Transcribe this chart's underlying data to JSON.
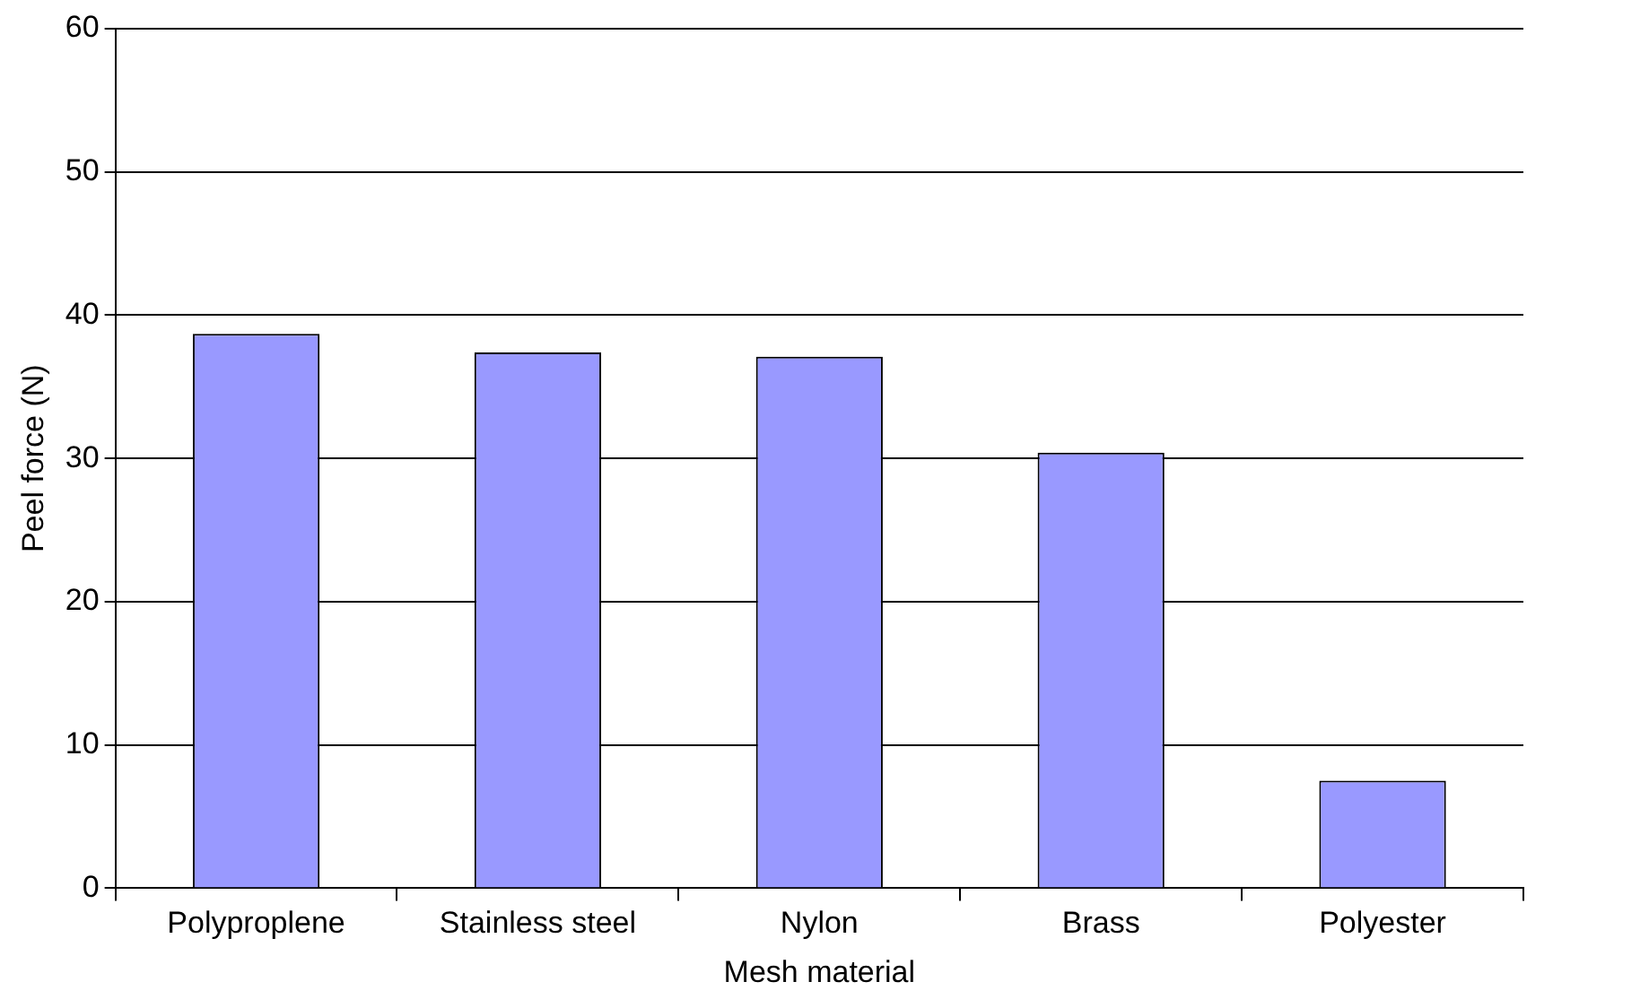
{
  "chart_data": {
    "type": "bar",
    "xlabel": "Mesh material",
    "ylabel": "Peel force (N)",
    "categories": [
      "Polyproplene",
      "Stainless steel",
      "Nylon",
      "Brass",
      "Polyester"
    ],
    "values": [
      38.7,
      37.4,
      37.1,
      30.4,
      7.5
    ],
    "color": "#9999ff",
    "ylim": [
      0,
      60
    ],
    "yticks": [
      0,
      10,
      20,
      30,
      40,
      50,
      60
    ],
    "grid": "y",
    "legend": false
  }
}
